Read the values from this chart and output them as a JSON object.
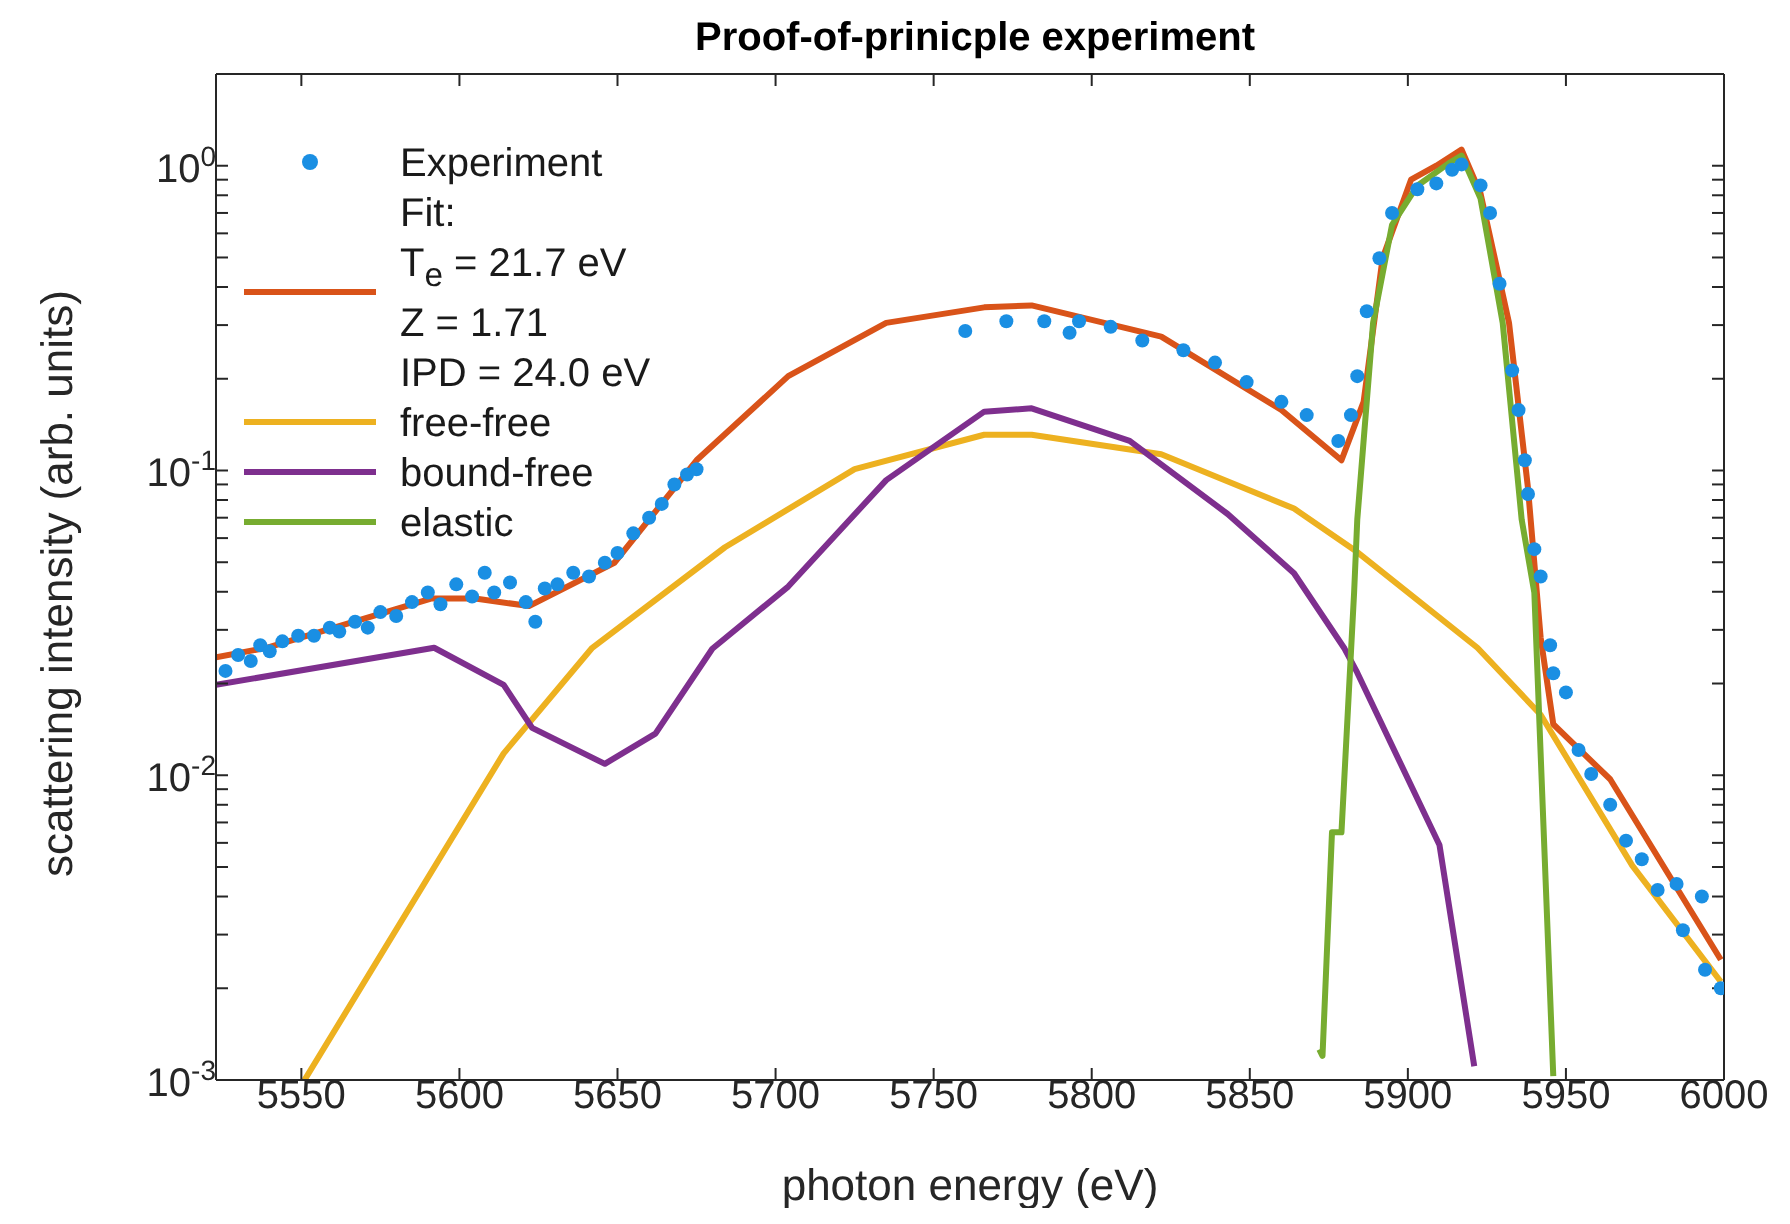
{
  "chart_data": {
    "type": "line",
    "title": "Proof-of-prinicple experiment",
    "xlabel": "photon energy (eV)",
    "ylabel": "scattering intensity (arb. units)",
    "log": "y",
    "legend": "top left",
    "xlim": [
      5523,
      6000
    ],
    "xticks": [
      5550,
      5600,
      5650,
      5700,
      5750,
      5800,
      5850,
      5900,
      5950,
      6000
    ],
    "ylim": [
      0.001,
      2
    ],
    "yticks": [
      {
        "value": 0.001,
        "label": "10$^{-3}$"
      },
      {
        "value": 0.002,
        "label": null
      },
      {
        "value": 0.003,
        "label": null
      },
      {
        "value": 0.004,
        "label": null
      },
      {
        "value": 0.005,
        "label": null
      },
      {
        "value": 0.006,
        "label": null
      },
      {
        "value": 0.007,
        "label": null
      },
      {
        "value": 0.008,
        "label": null
      },
      {
        "value": 0.009,
        "label": null
      },
      {
        "value": 0.01,
        "label": "10$^{-2}$"
      },
      {
        "value": 0.02,
        "label": null
      },
      {
        "value": 0.03,
        "label": null
      },
      {
        "value": 0.04,
        "label": null
      },
      {
        "value": 0.05,
        "label": null
      },
      {
        "value": 0.06,
        "label": null
      },
      {
        "value": 0.07,
        "label": null
      },
      {
        "value": 0.08,
        "label": null
      },
      {
        "value": 0.09,
        "label": null
      },
      {
        "value": 0.1,
        "label": "10$^{-1}$"
      },
      {
        "value": 0.2,
        "label": null
      },
      {
        "value": 0.3,
        "label": null
      },
      {
        "value": 0.4,
        "label": null
      },
      {
        "value": 0.5,
        "label": null
      },
      {
        "value": 0.6,
        "label": null
      },
      {
        "value": 0.7,
        "label": null
      },
      {
        "value": 0.8,
        "label": null
      },
      {
        "value": 0.9,
        "label": null
      },
      {
        "value": 1,
        "label": "10$^{0}$"
      },
      {
        "value": 2,
        "label": null
      }
    ],
    "series": [
      {
        "name": "Experiment",
        "type": "scatter",
        "marker": "circle",
        "color": "#1a8fe3",
        "x": [
          5526,
          5530,
          5534,
          5537,
          5540,
          5544,
          5549,
          5554,
          5559,
          5562,
          5567,
          5571,
          5575,
          5580,
          5585,
          5590,
          5594,
          5599,
          5604,
          5608,
          5611,
          5616,
          5621,
          5624,
          5627,
          5631,
          5636,
          5641,
          5646,
          5650,
          5655,
          5660,
          5664,
          5668,
          5672,
          5675,
          5760,
          5773,
          5785,
          5793,
          5796,
          5806,
          5816,
          5829,
          5839,
          5849,
          5860,
          5868,
          5878,
          5882,
          5884,
          5887,
          5891,
          5895,
          5903,
          5909,
          5914,
          5917,
          5923,
          5926,
          5929,
          5933,
          5935,
          5937,
          5938,
          5940,
          5942,
          5945,
          5946,
          5950,
          5954,
          5958,
          5964,
          5969,
          5974,
          5979,
          5985,
          5987,
          5993,
          5994,
          5999
        ],
        "values": [
          0.022,
          0.0248,
          0.0237,
          0.0267,
          0.0255,
          0.0275,
          0.0287,
          0.0287,
          0.0305,
          0.0296,
          0.0319,
          0.0305,
          0.0343,
          0.0333,
          0.037,
          0.0398,
          0.0364,
          0.0423,
          0.0386,
          0.0462,
          0.0398,
          0.0429,
          0.037,
          0.0319,
          0.041,
          0.0423,
          0.0462,
          0.0449,
          0.0498,
          0.0536,
          0.0622,
          0.07,
          0.0777,
          0.09,
          0.097,
          0.101,
          0.287,
          0.309,
          0.309,
          0.283,
          0.309,
          0.296,
          0.267,
          0.248,
          0.226,
          0.195,
          0.168,
          0.152,
          0.125,
          0.152,
          0.204,
          0.333,
          0.497,
          0.7,
          0.837,
          0.875,
          0.97,
          1.01,
          0.862,
          0.7,
          0.41,
          0.213,
          0.158,
          0.108,
          0.0837,
          0.0552,
          0.0449,
          0.0267,
          0.0216,
          0.0187,
          0.0121,
          0.0101,
          0.008,
          0.0061,
          0.0053,
          0.0042,
          0.0044,
          0.0031,
          0.004,
          0.0023,
          0.002
        ]
      },
      {
        "name": "Fit:\nT$_{e}$ = 21.7 eV\nZ = 1.71\nIPD = 24.0 eV",
        "marker": "none",
        "line_style": "solid",
        "color": "#d95319",
        "x": [
          5523,
          5539,
          5591,
          5605,
          5622,
          5649,
          5675,
          5704,
          5735,
          5766,
          5781,
          5822,
          5860,
          5879,
          5886,
          5892,
          5901,
          5909,
          5917,
          5923,
          5932,
          5938,
          5942,
          5946,
          5964,
          5999
        ],
        "values": [
          0.0244,
          0.0262,
          0.038,
          0.038,
          0.0359,
          0.0498,
          0.108,
          0.204,
          0.305,
          0.343,
          0.348,
          0.275,
          0.158,
          0.108,
          0.168,
          0.497,
          0.9,
          1.0,
          1.13,
          0.81,
          0.305,
          0.0875,
          0.0283,
          0.0147,
          0.0097,
          0.00248
        ]
      },
      {
        "name": "free-free",
        "marker": "none",
        "line_style": "solid",
        "color": "#edb120",
        "x": [
          5551,
          5614,
          5642,
          5684,
          5725,
          5766,
          5781,
          5822,
          5864,
          5884,
          5922,
          5942,
          5971,
          5999
        ],
        "values": [
          0.001,
          0.0118,
          0.0262,
          0.056,
          0.101,
          0.131,
          0.131,
          0.113,
          0.075,
          0.054,
          0.0262,
          0.0158,
          0.00505,
          0.0021
        ]
      },
      {
        "name": "bound-free",
        "marker": "none",
        "line_style": "solid",
        "color": "#7e2f8e",
        "x": [
          5523,
          5592,
          5614,
          5623,
          5646,
          5662,
          5680,
          5704,
          5735,
          5766,
          5781,
          5812,
          5843,
          5864,
          5880,
          5884,
          5910,
          5921
        ],
        "values": [
          0.0198,
          0.0262,
          0.0198,
          0.0143,
          0.0109,
          0.0137,
          0.026,
          0.0416,
          0.093,
          0.156,
          0.16,
          0.125,
          0.072,
          0.046,
          0.026,
          0.0217,
          0.0059,
          0.00111
        ]
      },
      {
        "name": "elastic",
        "marker": "none",
        "line_style": "solid",
        "color": "#77ac30",
        "x": [
          5872,
          5873,
          5876,
          5879,
          5883,
          5884,
          5889,
          5895,
          5903,
          5913,
          5917,
          5923,
          5930,
          5936,
          5940,
          5946
        ],
        "values": [
          0.00126,
          0.0012,
          0.0065,
          0.0065,
          0.0398,
          0.069,
          0.305,
          0.64,
          0.86,
          1.02,
          1.08,
          0.78,
          0.305,
          0.069,
          0.0398,
          0.00103
        ]
      }
    ]
  }
}
